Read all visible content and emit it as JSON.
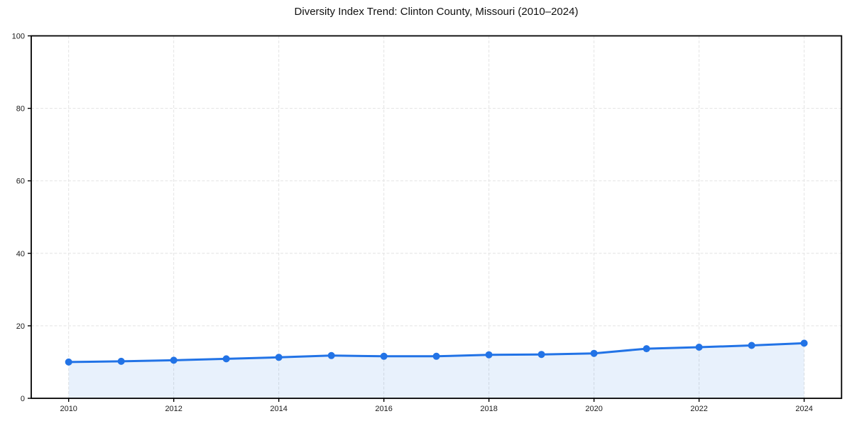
{
  "chart_data": {
    "type": "area",
    "title": "Diversity Index Trend: Clinton County, Missouri (2010–2024)",
    "x": [
      2010,
      2011,
      2012,
      2013,
      2014,
      2015,
      2016,
      2017,
      2018,
      2019,
      2020,
      2021,
      2022,
      2023,
      2024
    ],
    "series": [
      {
        "name": "Diversity Index",
        "values": [
          10.0,
          10.2,
          10.5,
          10.9,
          11.3,
          11.8,
          11.6,
          11.6,
          12.0,
          12.1,
          12.4,
          13.7,
          14.1,
          14.6,
          15.2
        ]
      }
    ],
    "xlabel": "",
    "ylabel": "",
    "xticks": [
      2010,
      2012,
      2014,
      2016,
      2018,
      2020,
      2022,
      2024
    ],
    "yticks": [
      0,
      20,
      40,
      60,
      80,
      100
    ],
    "ylim": [
      0,
      100
    ],
    "grid": true,
    "grid_style": "dashed",
    "legend_position": "none",
    "colors": {
      "line": "#2273e6",
      "marker": "#2273e6",
      "fill": "rgba(34,115,230,0.10)",
      "grid": "#e3e3e3",
      "axis": "#000000",
      "tick_text": "#1a1a1a",
      "title_text": "#111111",
      "background": "#ffffff"
    }
  }
}
